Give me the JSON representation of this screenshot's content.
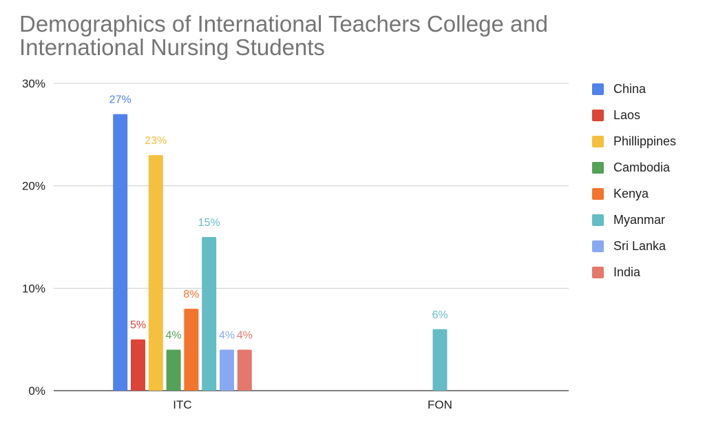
{
  "chart_data": {
    "type": "bar",
    "title": "Demographics of International Teachers College and International Nursing Students",
    "categories": [
      "ITC",
      "FON"
    ],
    "series": [
      {
        "name": "China",
        "color": "#4f83ea",
        "values": [
          27,
          null
        ]
      },
      {
        "name": "Laos",
        "color": "#db4437",
        "values": [
          5,
          null
        ]
      },
      {
        "name": "Phillippines",
        "color": "#f4c03e",
        "values": [
          23,
          null
        ]
      },
      {
        "name": "Cambodia",
        "color": "#53a258",
        "values": [
          4,
          null
        ]
      },
      {
        "name": "Kenya",
        "color": "#f2742e",
        "values": [
          8,
          null
        ]
      },
      {
        "name": "Myanmar",
        "color": "#64bcc4",
        "values": [
          15,
          6
        ]
      },
      {
        "name": "Sri Lanka",
        "color": "#86a9f2",
        "values": [
          4,
          null
        ]
      },
      {
        "name": "India",
        "color": "#e5776d",
        "values": [
          4,
          null
        ]
      }
    ],
    "ylim": [
      0,
      30
    ],
    "yticks": [
      "0%",
      "10%",
      "20%",
      "30%"
    ],
    "value_suffix": "%",
    "grid": true,
    "legend_position": "right"
  }
}
